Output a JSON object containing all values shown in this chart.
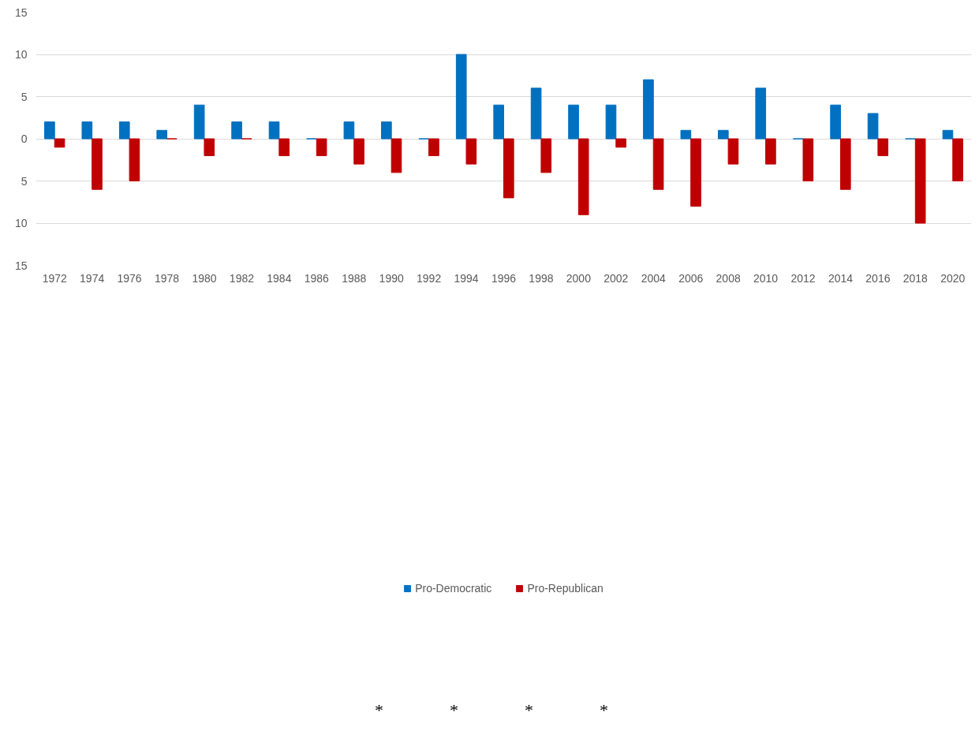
{
  "chart_data": {
    "type": "bar",
    "categories": [
      "1972",
      "1974",
      "1976",
      "1978",
      "1980",
      "1982",
      "1984",
      "1986",
      "1988",
      "1990",
      "1992",
      "1994",
      "1996",
      "1998",
      "2000",
      "2002",
      "2004",
      "2006",
      "2008",
      "2010",
      "2012",
      "2014",
      "2016",
      "2018",
      "2020"
    ],
    "series": [
      {
        "name": "Pro-Democratic",
        "color": "#0070c0",
        "values": [
          2,
          2,
          2,
          1,
          4,
          2,
          2,
          0,
          2,
          2,
          0,
          10,
          4,
          6,
          4,
          4,
          7,
          1,
          1,
          6,
          0,
          4,
          3,
          0,
          1
        ]
      },
      {
        "name": "Pro-Republican",
        "color": "#c00000",
        "values": [
          -1,
          -6,
          -5,
          0,
          -2,
          0,
          -2,
          -2,
          -3,
          -4,
          -2,
          -3,
          -7,
          -4,
          -9,
          -1,
          -6,
          -8,
          -3,
          -3,
          -5,
          -6,
          -2,
          -10,
          -5
        ]
      }
    ],
    "ylim": [
      -15,
      15
    ],
    "yticks": [
      {
        "value": -15,
        "label": "15"
      },
      {
        "value": -10,
        "label": "10"
      },
      {
        "value": -5,
        "label": "5"
      },
      0,
      5,
      10,
      15
    ],
    "grid": "y",
    "legend": "bottom",
    "annotations": [
      "*",
      "*",
      "*",
      "*"
    ]
  }
}
